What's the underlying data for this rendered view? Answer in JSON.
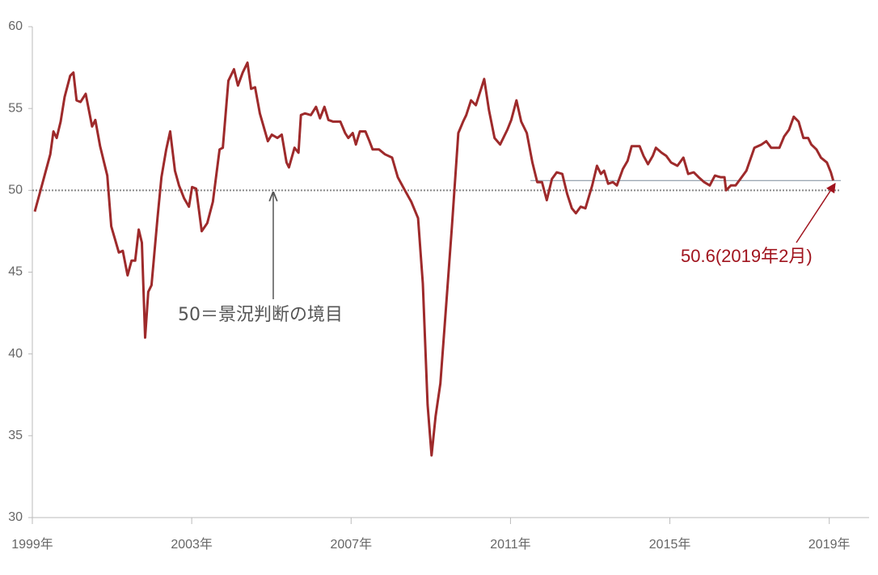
{
  "chart_data": {
    "type": "line",
    "x": [
      1999.06,
      1999.24,
      1999.45,
      1999.53,
      1999.61,
      1999.71,
      1999.81,
      1999.95,
      2000.03,
      2000.11,
      2000.21,
      2000.34,
      2000.5,
      2000.58,
      2000.7,
      2000.88,
      2000.98,
      2001.17,
      2001.27,
      2001.39,
      2001.49,
      2001.58,
      2001.67,
      2001.75,
      2001.83,
      2001.91,
      2001.99,
      2002.14,
      2002.24,
      2002.36,
      2002.46,
      2002.58,
      2002.68,
      2002.81,
      2002.93,
      2003.01,
      2003.11,
      2003.25,
      2003.39,
      2003.53,
      2003.7,
      2003.78,
      2003.92,
      2004.06,
      2004.16,
      2004.28,
      2004.4,
      2004.49,
      2004.59,
      2004.71,
      2004.91,
      2005.01,
      2005.15,
      2005.26,
      2005.38,
      2005.44,
      2005.58,
      2005.68,
      2005.74,
      2005.84,
      2005.99,
      2006.12,
      2006.22,
      2006.33,
      2006.43,
      2006.55,
      2006.73,
      2006.85,
      2006.93,
      2007.04,
      2007.12,
      2007.22,
      2007.36,
      2007.46,
      2007.54,
      2007.7,
      2007.85,
      2008.03,
      2008.17,
      2008.35,
      2008.51,
      2008.68,
      2008.8,
      2008.92,
      2009.02,
      2009.12,
      2009.24,
      2009.38,
      2009.53,
      2009.69,
      2009.81,
      2009.89,
      2010.01,
      2010.13,
      2010.34,
      2010.46,
      2010.6,
      2010.74,
      2010.92,
      2011.02,
      2011.15,
      2011.27,
      2011.41,
      2011.55,
      2011.67,
      2011.79,
      2011.91,
      2012.04,
      2012.16,
      2012.3,
      2012.42,
      2012.54,
      2012.64,
      2012.76,
      2012.88,
      2013.05,
      2013.17,
      2013.27,
      2013.35,
      2013.45,
      2013.57,
      2013.67,
      2013.82,
      2013.94,
      2014.04,
      2014.24,
      2014.34,
      2014.45,
      2014.57,
      2014.65,
      2014.79,
      2014.91,
      2015.03,
      2015.19,
      2015.34,
      2015.46,
      2015.6,
      2015.72,
      2015.86,
      2016.0,
      2016.13,
      2016.27,
      2016.37,
      2016.41,
      2016.53,
      2016.65,
      2016.77,
      2016.92,
      2017.12,
      2017.3,
      2017.42,
      2017.54,
      2017.75,
      2017.87,
      2017.99,
      2018.11,
      2018.23,
      2018.35,
      2018.47,
      2018.55,
      2018.68,
      2018.79,
      2018.94,
      2019.04,
      2019.1
    ],
    "series": [
      {
        "color": "#9e2a2b",
        "values": [
          48.7,
          50.3,
          52.2,
          53.6,
          53.2,
          54.2,
          55.7,
          57.0,
          57.2,
          55.5,
          55.4,
          55.9,
          53.9,
          54.3,
          52.7,
          50.9,
          47.8,
          46.2,
          46.3,
          44.8,
          45.7,
          45.7,
          47.6,
          46.8,
          41.0,
          43.8,
          44.2,
          48.3,
          50.8,
          52.5,
          53.6,
          51.2,
          50.3,
          49.5,
          49.0,
          50.2,
          50.1,
          47.5,
          48.0,
          49.3,
          52.5,
          52.6,
          56.7,
          57.4,
          56.4,
          57.2,
          57.8,
          56.2,
          56.3,
          54.7,
          53.0,
          53.4,
          53.2,
          53.4,
          51.7,
          51.4,
          52.6,
          52.3,
          54.6,
          54.7,
          54.6,
          55.1,
          54.4,
          55.1,
          54.3,
          54.2,
          54.2,
          53.5,
          53.2,
          53.5,
          52.8,
          53.6,
          53.6,
          53.0,
          52.5,
          52.5,
          52.2,
          52.0,
          50.8,
          50.0,
          49.3,
          48.3,
          44.3,
          36.9,
          33.8,
          36.2,
          38.2,
          42.8,
          47.8,
          53.5,
          54.2,
          54.6,
          55.5,
          55.2,
          56.8,
          54.9,
          53.2,
          52.8,
          53.7,
          54.3,
          55.5,
          54.2,
          53.5,
          51.7,
          50.5,
          50.5,
          49.4,
          50.7,
          51.1,
          51.0,
          49.8,
          48.9,
          48.6,
          49.0,
          48.9,
          50.3,
          51.5,
          51.0,
          51.2,
          50.4,
          50.5,
          50.3,
          51.3,
          51.8,
          52.7,
          52.7,
          52.1,
          51.6,
          52.1,
          52.6,
          52.3,
          52.1,
          51.7,
          51.5,
          52.0,
          51.0,
          51.1,
          50.8,
          50.5,
          50.3,
          50.9,
          50.8,
          50.8,
          50.0,
          50.3,
          50.3,
          50.7,
          51.2,
          52.6,
          52.8,
          53.0,
          52.6,
          52.6,
          53.3,
          53.7,
          54.5,
          54.2,
          53.2,
          53.2,
          52.8,
          52.5,
          52.0,
          51.7,
          51.1,
          50.6
        ]
      }
    ],
    "xlim": [
      1999,
      2020
    ],
    "xticks": [
      {
        "value": 1999,
        "label": "1999年"
      },
      {
        "value": 2003,
        "label": "2003年"
      },
      {
        "value": 2007,
        "label": "2007年"
      },
      {
        "value": 2011,
        "label": "2011年"
      },
      {
        "value": 2015,
        "label": "2015年"
      },
      {
        "value": 2019,
        "label": "2019年"
      }
    ],
    "ylim": [
      30,
      60
    ],
    "yticks": [
      30,
      35,
      40,
      45,
      50,
      55,
      60
    ],
    "reference_lines": [
      {
        "value": 50,
        "style": "dotted"
      },
      {
        "value": 50.6,
        "x_start": 2011.5
      }
    ],
    "annotations": [
      "50＝景況判断の境目",
      "50.6(2019年2月)"
    ]
  }
}
